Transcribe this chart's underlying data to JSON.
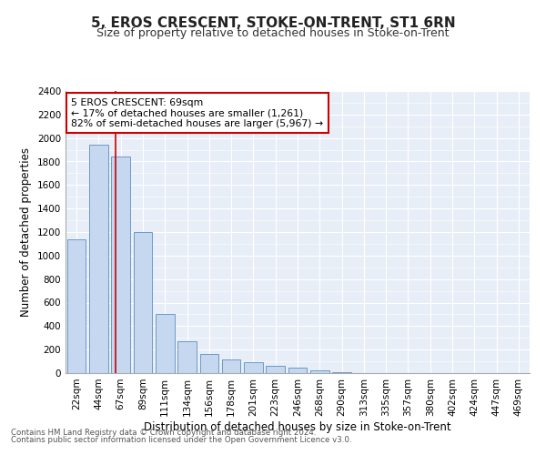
{
  "title": "5, EROS CRESCENT, STOKE-ON-TRENT, ST1 6RN",
  "subtitle": "Size of property relative to detached houses in Stoke-on-Trent",
  "xlabel": "Distribution of detached houses by size in Stoke-on-Trent",
  "ylabel": "Number of detached properties",
  "categories": [
    "22sqm",
    "44sqm",
    "67sqm",
    "89sqm",
    "111sqm",
    "134sqm",
    "156sqm",
    "178sqm",
    "201sqm",
    "223sqm",
    "246sqm",
    "268sqm",
    "290sqm",
    "313sqm",
    "335sqm",
    "357sqm",
    "380sqm",
    "402sqm",
    "424sqm",
    "447sqm",
    "469sqm"
  ],
  "values": [
    1140,
    1940,
    1840,
    1200,
    500,
    270,
    160,
    120,
    95,
    65,
    50,
    25,
    10,
    0,
    0,
    0,
    0,
    0,
    0,
    0,
    0
  ],
  "bar_color": "#c5d8f0",
  "bar_edge_color": "#5b8ec4",
  "annotation_line1": "5 EROS CRESCENT: 69sqm",
  "annotation_line2": "← 17% of detached houses are smaller (1,261)",
  "annotation_line3": "82% of semi-detached houses are larger (5,967) →",
  "vline_x": 1.75,
  "vline_color": "#cc0000",
  "box_edge_color": "#cc0000",
  "ylim": [
    0,
    2400
  ],
  "yticks": [
    0,
    200,
    400,
    600,
    800,
    1000,
    1200,
    1400,
    1600,
    1800,
    2000,
    2200,
    2400
  ],
  "plot_bg_color": "#e8eef8",
  "footer1": "Contains HM Land Registry data © Crown copyright and database right 2024.",
  "footer2": "Contains public sector information licensed under the Open Government Licence v3.0.",
  "title_fontsize": 11,
  "subtitle_fontsize": 9,
  "axis_label_fontsize": 8.5,
  "tick_fontsize": 7.5
}
